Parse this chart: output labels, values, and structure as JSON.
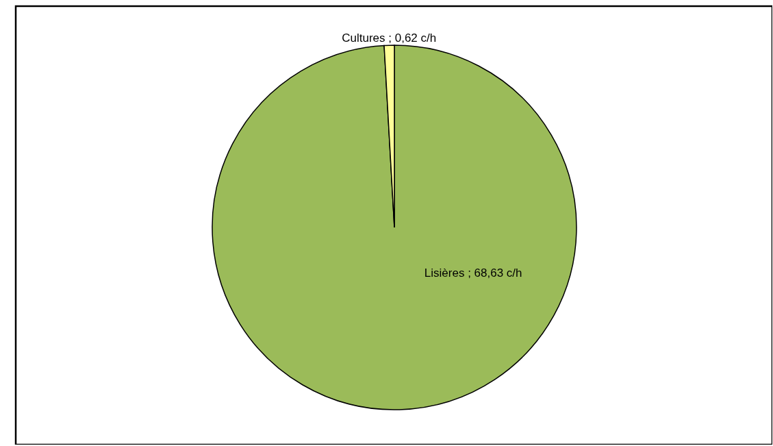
{
  "chart_data": {
    "type": "pie",
    "categories": [
      "Lisières",
      "Cultures"
    ],
    "values": [
      68.63,
      0.62
    ],
    "colors": [
      "#9bbb59",
      "#ffff99"
    ],
    "value_labels": [
      "68,63 c/h",
      "0,62 c/h"
    ]
  }
}
